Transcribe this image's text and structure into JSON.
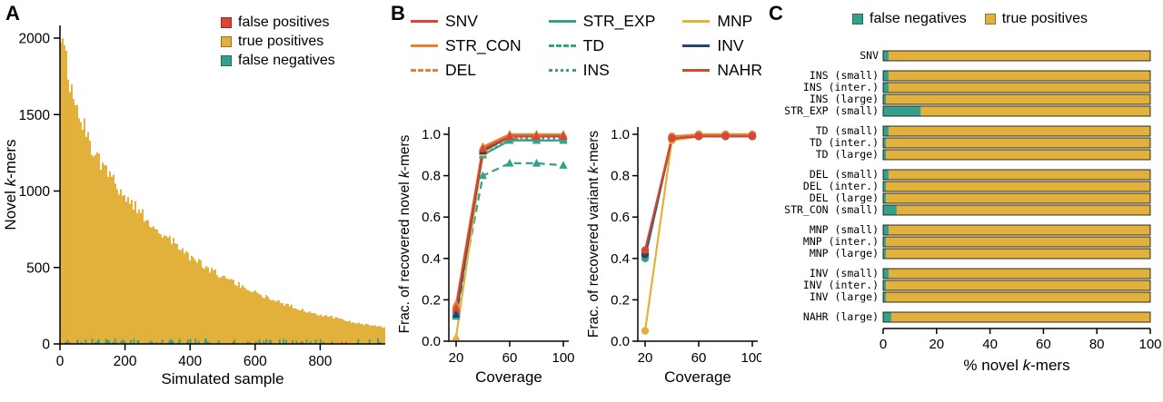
{
  "colors": {
    "yellow": "#E2B13C",
    "teal": "#35A08C",
    "red": "#DC4437",
    "orange": "#E8812C",
    "navy": "#27456B",
    "axis": "#000000"
  },
  "panelA": {
    "label": "A"
  },
  "panelB": {
    "label": "B"
  },
  "panelC": {
    "label": "C"
  },
  "chart_data": [
    {
      "panel": "A",
      "type": "bar",
      "xlabel": "Simulated sample",
      "ylabel": "Novel k-mers",
      "xlim": [
        0,
        1000
      ],
      "ylim": [
        0,
        2000
      ],
      "x_ticks": [
        0,
        200,
        400,
        600,
        800
      ],
      "y_ticks": [
        0,
        500,
        1000,
        1500,
        2000
      ],
      "legend": [
        {
          "label": "false positives",
          "color_key": "red"
        },
        {
          "label": "true positives",
          "color_key": "yellow"
        },
        {
          "label": "false negatives",
          "color_key": "teal"
        }
      ],
      "decay_control_points": {
        "x": [
          0,
          10,
          25,
          50,
          75,
          100,
          150,
          200,
          250,
          300,
          350,
          400,
          450,
          500,
          550,
          600,
          650,
          700,
          750,
          800,
          850,
          900,
          950,
          1000
        ],
        "y": [
          2030,
          1900,
          1700,
          1520,
          1380,
          1260,
          1090,
          950,
          840,
          740,
          650,
          560,
          490,
          430,
          380,
          330,
          290,
          250,
          215,
          190,
          165,
          140,
          120,
          105
        ]
      }
    },
    {
      "panel": "B-left",
      "type": "line",
      "xlabel": "Coverage",
      "ylabel": "Frac. of recovered novel k-mers",
      "x": [
        20,
        40,
        60,
        80,
        100
      ],
      "x_ticks": [
        20,
        60,
        100
      ],
      "y_ticks": [
        0.0,
        0.2,
        0.4,
        0.6,
        0.8,
        1.0
      ],
      "marker": "triangle",
      "series": [
        {
          "name": "SNV",
          "color_key": "red",
          "dash": "solid",
          "values": [
            0.15,
            0.93,
            0.99,
            0.99,
            0.99
          ]
        },
        {
          "name": "STR_CON",
          "color_key": "orange",
          "dash": "solid",
          "values": [
            0.18,
            0.94,
            1.0,
            1.0,
            1.0
          ]
        },
        {
          "name": "DEL",
          "color_key": "orange",
          "dash": "dashed",
          "values": [
            0.17,
            0.92,
            0.98,
            0.97,
            0.97
          ]
        },
        {
          "name": "STR_EXP",
          "color_key": "teal",
          "dash": "solid",
          "values": [
            0.13,
            0.9,
            0.97,
            0.97,
            0.97
          ]
        },
        {
          "name": "TD",
          "color_key": "teal",
          "dash": "dashed",
          "values": [
            0.12,
            0.8,
            0.86,
            0.86,
            0.85
          ]
        },
        {
          "name": "INS",
          "color_key": "teal",
          "dash": "dotted",
          "values": [
            0.14,
            0.9,
            0.98,
            0.98,
            0.98
          ]
        },
        {
          "name": "MNP",
          "color_key": "yellow",
          "dash": "solid",
          "values": [
            0.02,
            0.91,
            0.99,
            0.99,
            0.99
          ]
        },
        {
          "name": "INV",
          "color_key": "navy",
          "dash": "solid",
          "values": [
            0.13,
            0.92,
            0.99,
            0.99,
            0.99
          ]
        },
        {
          "name": "NAHR",
          "color_key": "red",
          "dash": "solid",
          "values": [
            0.16,
            0.93,
            0.99,
            0.99,
            0.99
          ]
        }
      ]
    },
    {
      "panel": "B-right",
      "type": "line",
      "xlabel": "Coverage",
      "ylabel": "Frac. of recovered variant k-mers",
      "x": [
        20,
        40,
        60,
        80,
        100
      ],
      "x_ticks": [
        20,
        60,
        100
      ],
      "y_ticks": [
        0.0,
        0.2,
        0.4,
        0.6,
        0.8,
        1.0
      ],
      "marker": "circle",
      "series": [
        {
          "name": "SNV",
          "color_key": "red",
          "dash": "solid",
          "values": [
            0.44,
            0.98,
            0.99,
            0.99,
            0.99
          ]
        },
        {
          "name": "STR_CON",
          "color_key": "orange",
          "dash": "solid",
          "values": [
            0.43,
            0.99,
            1.0,
            1.0,
            1.0
          ]
        },
        {
          "name": "DEL",
          "color_key": "orange",
          "dash": "dashed",
          "values": [
            0.42,
            0.98,
            0.99,
            0.99,
            0.99
          ]
        },
        {
          "name": "STR_EXP",
          "color_key": "teal",
          "dash": "solid",
          "values": [
            0.4,
            0.98,
            0.99,
            0.99,
            0.99
          ]
        },
        {
          "name": "TD",
          "color_key": "teal",
          "dash": "dashed",
          "values": [
            0.41,
            0.98,
            0.99,
            0.99,
            0.99
          ]
        },
        {
          "name": "INS",
          "color_key": "teal",
          "dash": "dotted",
          "values": [
            0.41,
            0.98,
            0.99,
            0.99,
            0.99
          ]
        },
        {
          "name": "MNP",
          "color_key": "yellow",
          "dash": "solid",
          "values": [
            0.05,
            0.97,
            0.99,
            0.99,
            0.99
          ]
        },
        {
          "name": "INV",
          "color_key": "navy",
          "dash": "solid",
          "values": [
            0.42,
            0.98,
            0.99,
            0.99,
            0.99
          ]
        },
        {
          "name": "NAHR",
          "color_key": "red",
          "dash": "solid",
          "values": [
            0.44,
            0.98,
            0.99,
            0.99,
            0.99
          ]
        }
      ]
    },
    {
      "panel": "C",
      "type": "bar",
      "orientation": "horizontal",
      "xlabel": "% novel k-mers",
      "x_ticks": [
        0,
        20,
        40,
        60,
        80,
        100
      ],
      "legend": [
        {
          "label": "false negatives",
          "color_key": "teal"
        },
        {
          "label": "true positives",
          "color_key": "yellow"
        }
      ],
      "groups": [
        {
          "rows": [
            {
              "label": "SNV",
              "false_negatives": 2,
              "true_positives": 98
            }
          ]
        },
        {
          "rows": [
            {
              "label": "INS (small)",
              "false_negatives": 2,
              "true_positives": 98
            },
            {
              "label": "INS (inter.)",
              "false_negatives": 2,
              "true_positives": 98
            },
            {
              "label": "INS (large)",
              "false_negatives": 1,
              "true_positives": 99
            },
            {
              "label": "STR_EXP (small)",
              "false_negatives": 14,
              "true_positives": 86
            }
          ]
        },
        {
          "rows": [
            {
              "label": "TD (small)",
              "false_negatives": 2,
              "true_positives": 98
            },
            {
              "label": "TD (inter.)",
              "false_negatives": 1,
              "true_positives": 99
            },
            {
              "label": "TD (large)",
              "false_negatives": 1,
              "true_positives": 99
            }
          ]
        },
        {
          "rows": [
            {
              "label": "DEL (small)",
              "false_negatives": 2,
              "true_positives": 98
            },
            {
              "label": "DEL (inter.)",
              "false_negatives": 1,
              "true_positives": 99
            },
            {
              "label": "DEL (large)",
              "false_negatives": 1,
              "true_positives": 99
            },
            {
              "label": "STR_CON (small)",
              "false_negatives": 5,
              "true_positives": 95
            }
          ]
        },
        {
          "rows": [
            {
              "label": "MNP (small)",
              "false_negatives": 2,
              "true_positives": 98
            },
            {
              "label": "MNP (inter.)",
              "false_negatives": 1,
              "true_positives": 99
            },
            {
              "label": "MNP (large)",
              "false_negatives": 1,
              "true_positives": 99
            }
          ]
        },
        {
          "rows": [
            {
              "label": "INV (small)",
              "false_negatives": 2,
              "true_positives": 98
            },
            {
              "label": "INV (inter.)",
              "false_negatives": 1,
              "true_positives": 99
            },
            {
              "label": "INV (large)",
              "false_negatives": 1,
              "true_positives": 99
            }
          ]
        },
        {
          "rows": [
            {
              "label": "NAHR (large)",
              "false_negatives": 3,
              "true_positives": 97
            }
          ]
        }
      ]
    }
  ]
}
